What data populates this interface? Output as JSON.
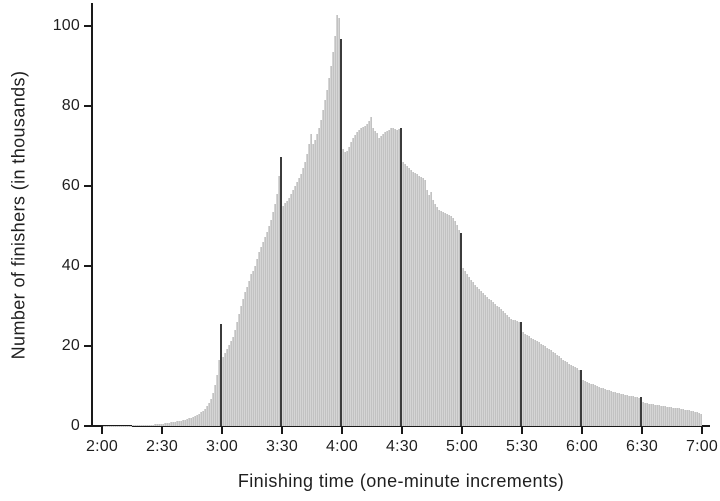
{
  "figure": {
    "background": "#ffffff",
    "description": "Histogram of marathon finishing times in one-minute bins with dark highlighted bars at each half-hour mark"
  },
  "chart_data": {
    "type": "bar",
    "title": "",
    "xlabel": "Finishing time (one-minute increments)",
    "ylabel": "Number of finishers (in thousands)",
    "x_axis": {
      "tick_labels": [
        "2:00",
        "2:30",
        "3:00",
        "3:30",
        "4:00",
        "4:30",
        "5:00",
        "5:30",
        "6:00",
        "6:30",
        "7:00"
      ],
      "tick_interval_minutes": 30,
      "range_minutes": [
        120,
        420
      ]
    },
    "y_axis": {
      "ticks": [
        0,
        20,
        40,
        60,
        80,
        100
      ],
      "range": [
        0,
        105
      ],
      "grid": false
    },
    "bin_minutes": 1,
    "first_bin_minute": 121,
    "values": [
      0.02,
      0.02,
      0.03,
      0.03,
      0.04,
      0.04,
      0.05,
      0.05,
      0.06,
      0.07,
      0.08,
      0.09,
      0.1,
      0.11,
      0.12,
      0.13,
      0.15,
      0.16,
      0.18,
      0.2,
      0.22,
      0.25,
      0.27,
      0.3,
      0.33,
      0.36,
      0.4,
      0.45,
      0.5,
      0.55,
      0.6,
      0.65,
      0.72,
      0.8,
      0.88,
      0.95,
      1.05,
      1.15,
      1.25,
      1.35,
      1.5,
      1.6,
      1.75,
      1.9,
      2.1,
      2.3,
      2.55,
      2.8,
      3.1,
      3.4,
      3.8,
      4.3,
      5.0,
      5.8,
      6.8,
      8.2,
      10.2,
      12.8,
      16.4,
      25.5,
      17.3,
      18.2,
      19.2,
      20.2,
      21.2,
      22.3,
      24.0,
      26.0,
      28.0,
      30.0,
      31.8,
      33.4,
      34.8,
      36.2,
      38.0,
      38.8,
      40.0,
      41.8,
      43.4,
      44.8,
      46.0,
      47.2,
      48.6,
      50.0,
      51.6,
      53.4,
      55.4,
      58.0,
      62.5,
      67.3,
      55.0,
      55.8,
      56.3,
      57.0,
      58.0,
      59.0,
      60.0,
      61.0,
      62.0,
      63.0,
      64.5,
      66.0,
      68.0,
      70.5,
      73.0,
      70.5,
      71.5,
      73.0,
      74.5,
      76.5,
      79.0,
      81.5,
      84.0,
      87.0,
      90.0,
      93.5,
      97.5,
      102.8,
      102.0,
      96.7,
      69.3,
      68.5,
      68.8,
      69.8,
      71.0,
      72.0,
      72.8,
      73.5,
      74.0,
      74.5,
      74.8,
      75.1,
      75.5,
      76.2,
      77.3,
      74.5,
      73.8,
      73.2,
      71.9,
      72.4,
      72.9,
      73.4,
      73.8,
      74.1,
      74.4,
      74.6,
      74.3,
      74.1,
      74.3,
      74.4,
      66.0,
      65.4,
      64.9,
      64.4,
      64.0,
      63.6,
      63.2,
      62.9,
      62.6,
      62.3,
      61.9,
      61.4,
      59.0,
      57.8,
      58.4,
      56.6,
      55.6,
      54.7,
      54.1,
      53.7,
      53.4,
      53.2,
      53.0,
      52.8,
      52.5,
      51.9,
      51.2,
      50.3,
      49.1,
      48.2,
      39.5,
      38.7,
      38.0,
      37.3,
      36.6,
      35.9,
      35.3,
      34.8,
      34.3,
      33.8,
      33.3,
      32.8,
      32.3,
      31.8,
      31.4,
      30.9,
      30.5,
      30.1,
      29.7,
      29.3,
      28.8,
      28.3,
      27.8,
      27.3,
      26.8,
      26.6,
      26.4,
      26.2,
      26.0,
      25.9,
      23.4,
      23.0,
      22.7,
      22.4,
      22.1,
      21.8,
      21.5,
      21.2,
      20.9,
      20.6,
      20.2,
      19.9,
      19.6,
      19.3,
      19.0,
      18.6,
      18.2,
      17.8,
      17.4,
      17.0,
      16.6,
      16.3,
      15.9,
      15.6,
      15.3,
      15.0,
      14.7,
      14.4,
      14.1,
      13.9,
      11.4,
      11.2,
      11.0,
      10.8,
      10.6,
      10.4,
      10.2,
      10.0,
      9.8,
      9.6,
      9.4,
      9.2,
      9.1,
      8.9,
      8.8,
      8.6,
      8.5,
      8.3,
      8.2,
      8.1,
      7.9,
      7.8,
      7.7,
      7.6,
      7.5,
      7.4,
      7.3,
      7.2,
      7.1,
      7.2,
      5.9,
      5.8,
      5.7,
      5.6,
      5.5,
      5.4,
      5.3,
      5.25,
      5.2,
      5.1,
      5.0,
      4.9,
      4.85,
      4.8,
      4.7,
      4.6,
      4.55,
      4.5,
      4.4,
      4.3,
      4.2,
      4.1,
      4.0,
      3.9,
      3.8,
      3.7,
      3.6,
      3.5,
      3.3,
      3.1
    ],
    "highlight_minutes": [
      180,
      210,
      240,
      270,
      300,
      330,
      360,
      390
    ],
    "highlight_times": [
      "3:00",
      "3:30",
      "4:00",
      "4:30",
      "5:00",
      "5:30",
      "6:00",
      "6:30"
    ],
    "colors": {
      "bar_fill": "#d5d5d5",
      "bar_edge": "#c2c2c2",
      "bar_highlight": "#3b3b3b",
      "axis": "#1a1a1a",
      "text": "#1f1f1f",
      "background": "#ffffff"
    }
  }
}
